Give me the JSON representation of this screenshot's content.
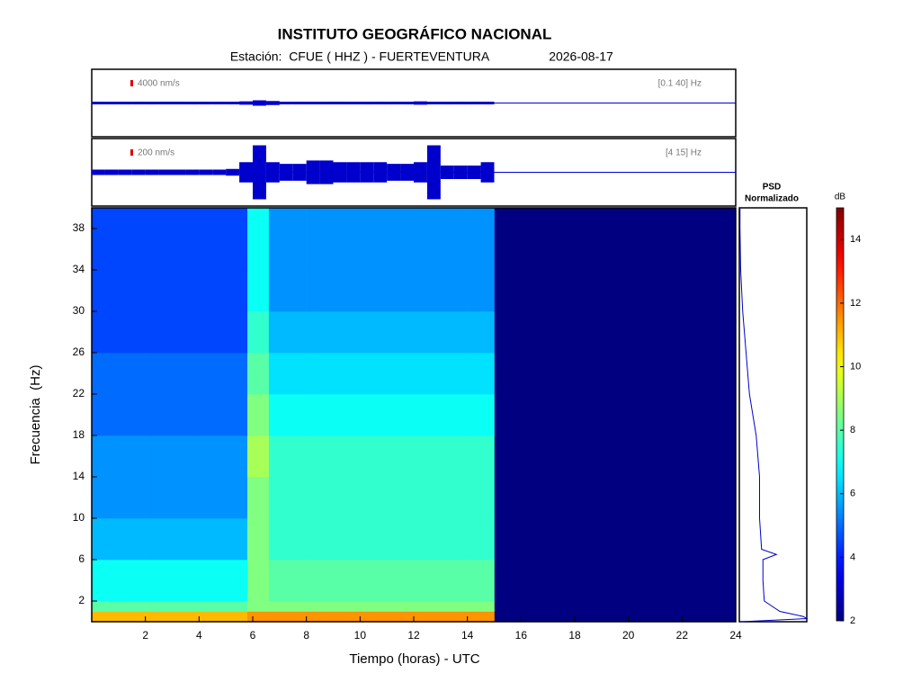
{
  "chart_data": {
    "type": "spectrogram",
    "title": "INSTITUTO GEOGRÁFICO NACIONAL",
    "subtitle": "Estación:  CFUE ( HHZ ) - FUERTEVENTURA",
    "date": "2026-08-17",
    "xlabel": "Tiempo (horas) - UTC",
    "ylabel": "Frecuencia  (Hz)",
    "xlim": [
      0,
      24
    ],
    "xticks": [
      2,
      4,
      6,
      8,
      10,
      12,
      14,
      16,
      18,
      20,
      22,
      24
    ],
    "ylim": [
      0,
      40
    ],
    "yticks": [
      2,
      6,
      10,
      14,
      18,
      22,
      26,
      30,
      34,
      38
    ],
    "colorscale": "jet",
    "colorbar_label": "dB",
    "zlim": [
      2,
      15
    ],
    "zticks": [
      2,
      4,
      6,
      8,
      10,
      12,
      14
    ],
    "time_edges": [
      0,
      2,
      4,
      5.8,
      6.6,
      8,
      10,
      12,
      14,
      15
    ],
    "freq_edges": [
      0,
      1,
      2,
      6,
      10,
      14,
      18,
      22,
      26,
      30,
      34,
      40
    ],
    "z": [
      [
        11,
        11,
        11,
        11.5,
        11.5,
        11.5,
        11.5,
        11.5,
        11.5
      ],
      [
        8,
        8,
        8,
        8.5,
        8.5,
        8.5,
        8.5,
        8.5,
        8.5
      ],
      [
        7,
        7,
        7,
        8.5,
        8,
        8,
        8,
        8,
        8
      ],
      [
        6,
        6,
        6,
        8.5,
        7.5,
        7.5,
        7.5,
        7.5,
        7.5
      ],
      [
        5.5,
        5.5,
        5.5,
        8.5,
        7.5,
        7.5,
        7.5,
        7.5,
        7.5
      ],
      [
        5.5,
        5.5,
        5.5,
        9,
        7.5,
        7.5,
        7.5,
        7.5,
        7.5
      ],
      [
        5,
        5,
        5,
        8.5,
        7,
        7,
        7,
        7,
        7
      ],
      [
        5,
        5,
        5,
        8,
        6.5,
        6.5,
        6.5,
        6.5,
        6.5
      ],
      [
        4.5,
        4.5,
        4.5,
        7.5,
        6,
        6,
        6,
        6,
        6
      ],
      [
        4.5,
        4.5,
        4.5,
        7,
        5.5,
        5.5,
        5.5,
        5.5,
        5.5
      ],
      [
        4.5,
        4.5,
        4.5,
        7,
        5.5,
        5.5,
        5.5,
        5.5,
        5.5
      ]
    ],
    "traces": [
      {
        "scale_label": "4000 nm/s",
        "band_label": "[0.1 40] Hz",
        "color": "#0000cc",
        "amplitude": [
          0.04,
          0.04,
          0.04,
          0.04,
          0.04,
          0.04,
          0.04,
          0.04,
          0.04,
          0.04,
          0.04,
          0.05,
          0.08,
          0.06,
          0.04,
          0.04,
          0.04,
          0.04,
          0.04,
          0.04,
          0.04,
          0.04,
          0.04,
          0.04,
          0.05,
          0.04,
          0.04,
          0.04,
          0.04,
          0.04
        ]
      },
      {
        "scale_label": "200 nm/s",
        "band_label": "[4 15] Hz",
        "color": "#0000cc",
        "amplitude": [
          0.08,
          0.08,
          0.08,
          0.08,
          0.08,
          0.08,
          0.08,
          0.08,
          0.08,
          0.08,
          0.1,
          0.3,
          0.8,
          0.3,
          0.25,
          0.25,
          0.35,
          0.35,
          0.3,
          0.3,
          0.3,
          0.3,
          0.25,
          0.25,
          0.3,
          0.8,
          0.2,
          0.2,
          0.2,
          0.3
        ]
      }
    ],
    "trace_edges": [
      0,
      0.5,
      1,
      1.5,
      2,
      2.5,
      3,
      3.5,
      4,
      4.5,
      5,
      5.5,
      6,
      6.5,
      7,
      7.5,
      8,
      8.5,
      9,
      9.5,
      10,
      10.5,
      11,
      11.5,
      12,
      12.5,
      13,
      13.5,
      14,
      14.5,
      15
    ],
    "psd": {
      "title": "PSD",
      "subtitle": "Normalizado",
      "color": "#0000cc",
      "xlim": [
        0,
        1
      ],
      "freqs": [
        0,
        0.3,
        0.5,
        1,
        2,
        4,
        6,
        6.5,
        7,
        10,
        14,
        18,
        22,
        26,
        30,
        34,
        38,
        40
      ],
      "values": [
        0.02,
        1,
        0.95,
        0.6,
        0.37,
        0.35,
        0.35,
        0.55,
        0.33,
        0.3,
        0.3,
        0.25,
        0.15,
        0.1,
        0.05,
        0.02,
        0.01,
        0.01
      ]
    }
  }
}
